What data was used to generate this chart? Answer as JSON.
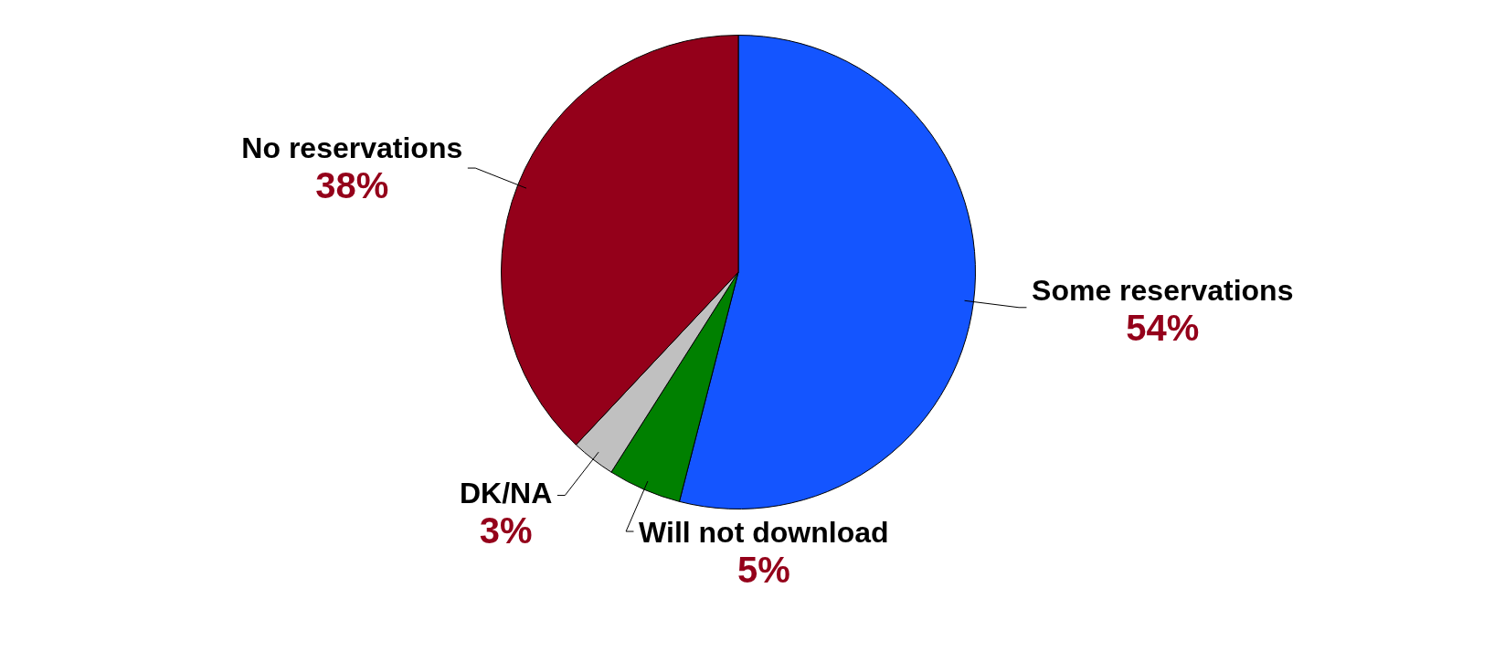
{
  "chart_data": {
    "type": "pie",
    "categories": [
      "Some reservations",
      "Will not download",
      "DK/NA",
      "No reservations"
    ],
    "values": [
      54,
      5,
      3,
      38
    ],
    "colors": [
      "#1455ff",
      "#008000",
      "#c0c0c0",
      "#94001a"
    ],
    "value_labels": [
      "54%",
      "5%",
      "3%",
      "38%"
    ],
    "legend": false
  }
}
